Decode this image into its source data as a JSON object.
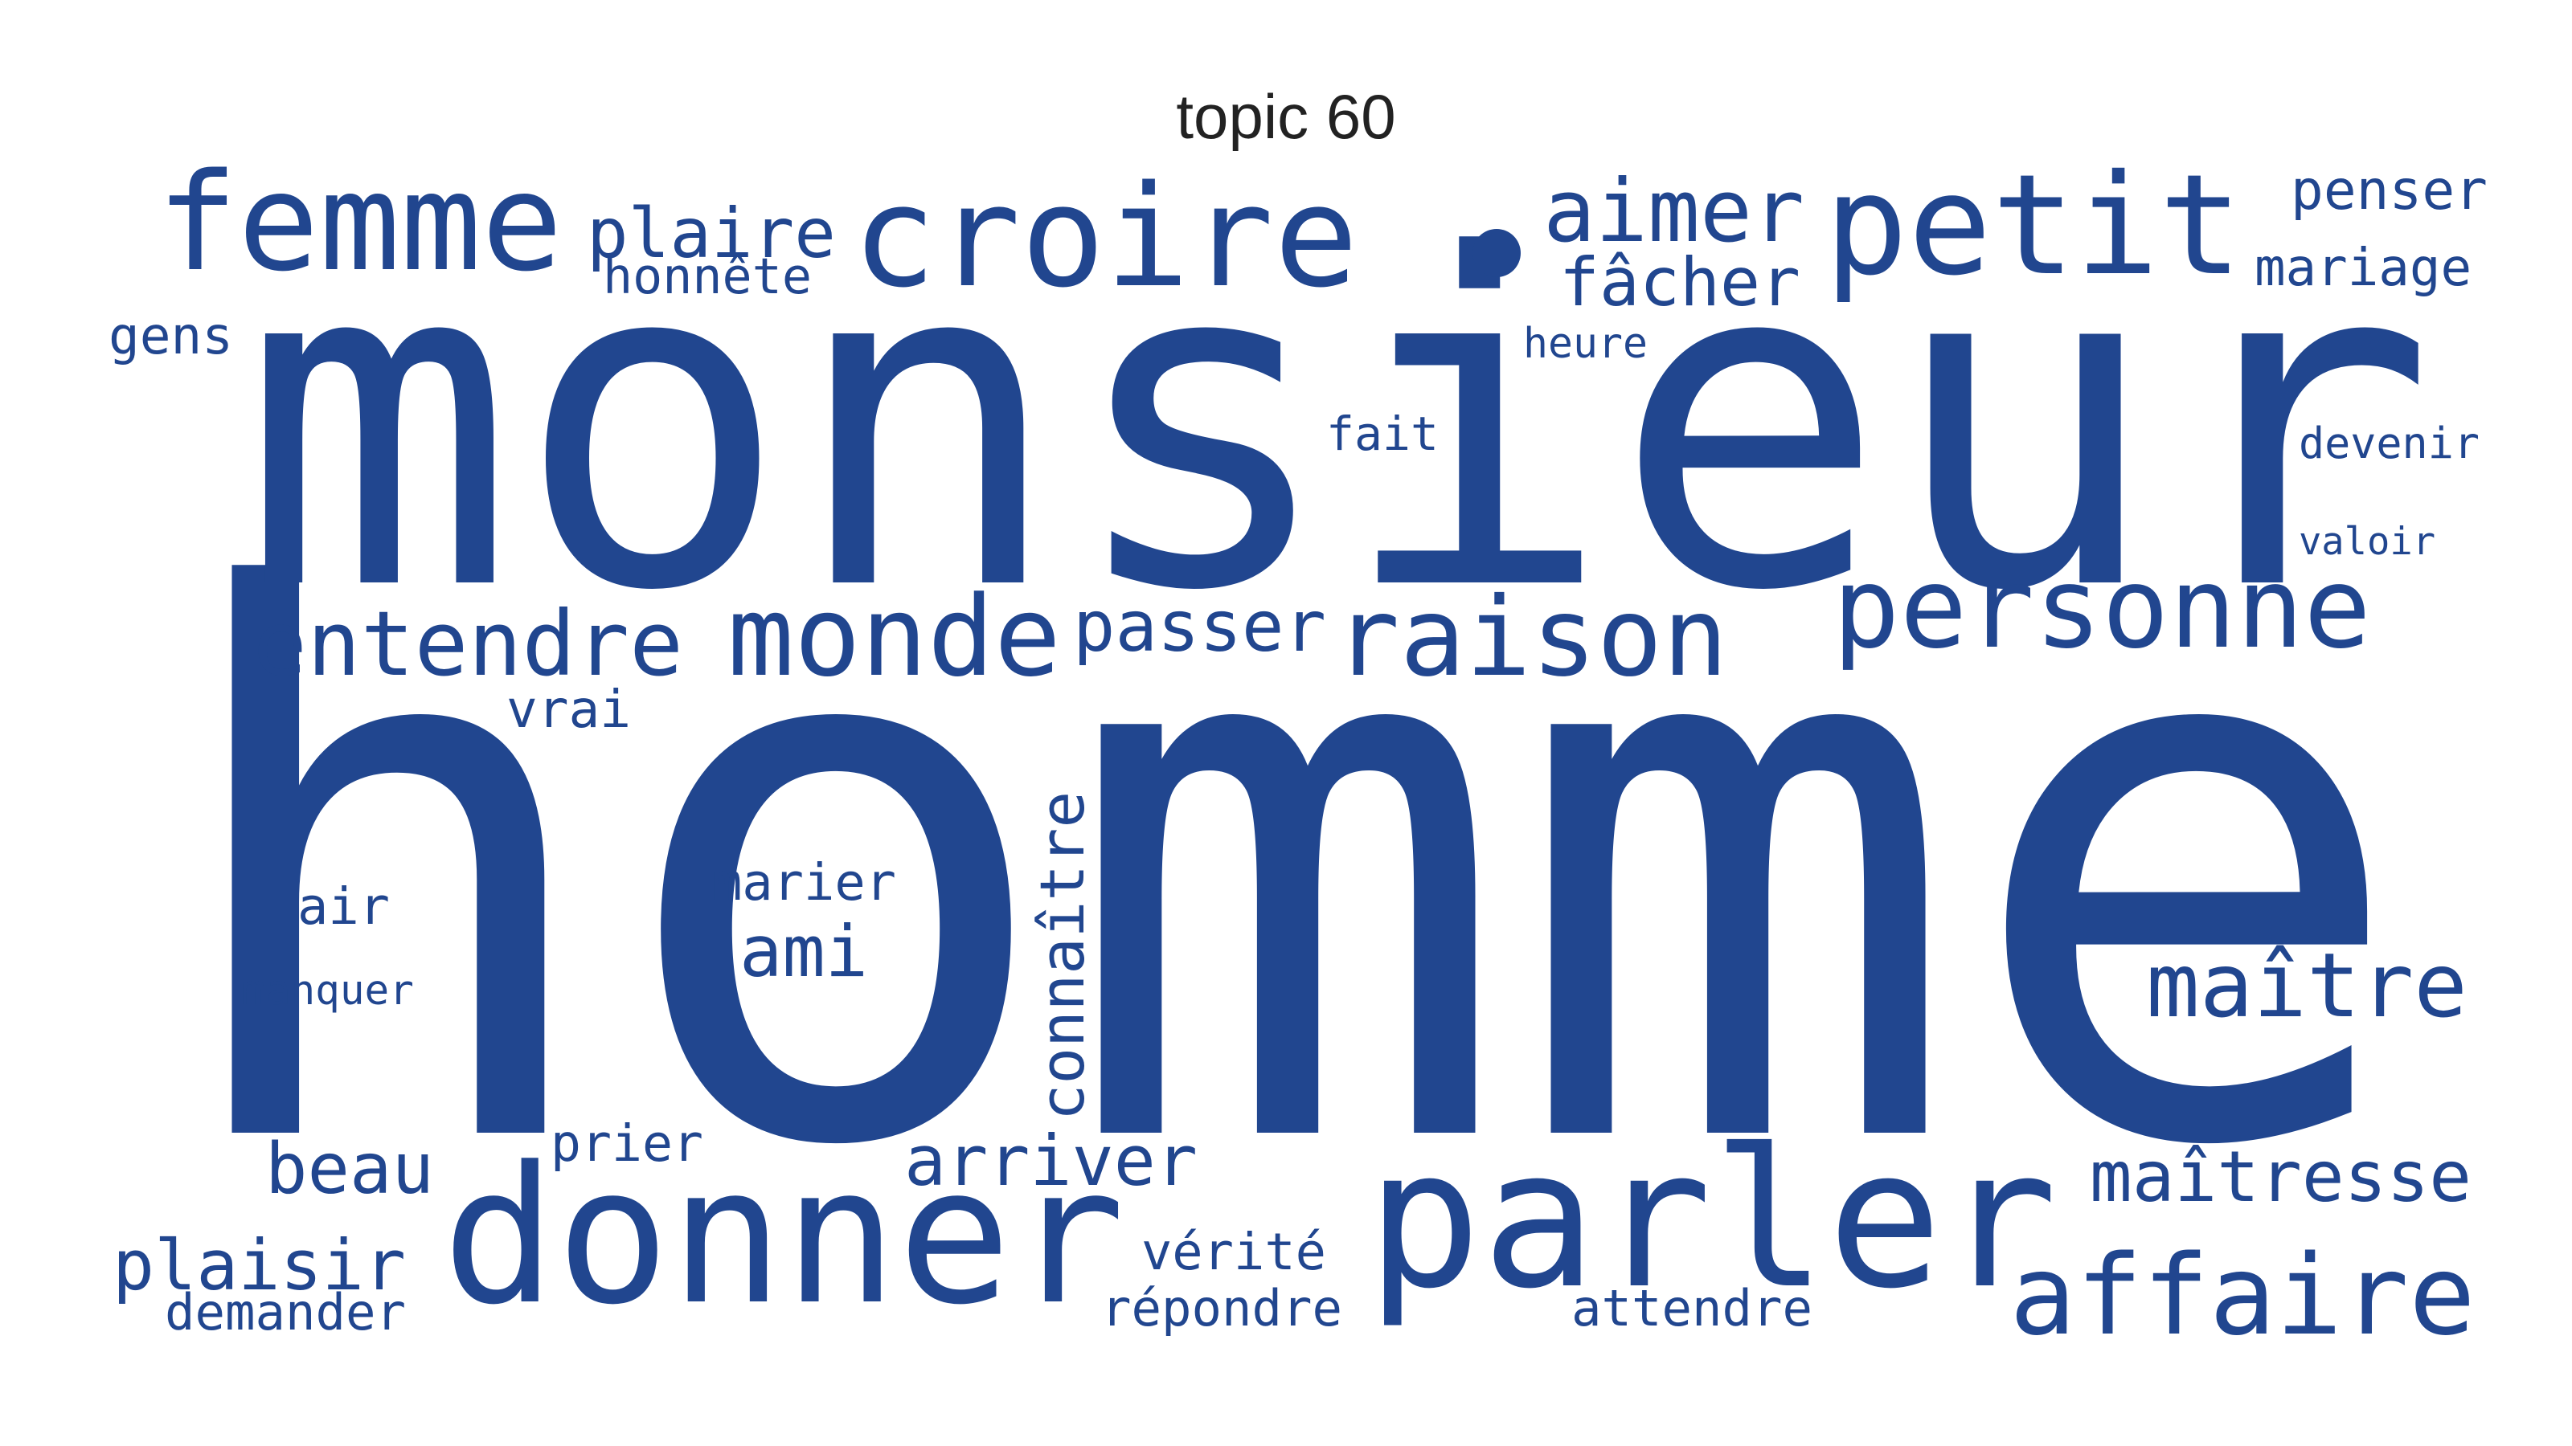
{
  "chart_data": {
    "type": "wordcloud",
    "title": "topic 60",
    "color": "#21468f",
    "words": [
      {
        "text": "homme",
        "weight": 100
      },
      {
        "text": "monsieur",
        "weight": 58
      },
      {
        "text": "parler",
        "weight": 24
      },
      {
        "text": "donner",
        "weight": 22
      },
      {
        "text": "croire",
        "weight": 15
      },
      {
        "text": "petit",
        "weight": 15
      },
      {
        "text": "femme",
        "weight": 15
      },
      {
        "text": "raison",
        "weight": 12
      },
      {
        "text": "personne",
        "weight": 12
      },
      {
        "text": "affaire",
        "weight": 12
      },
      {
        "text": "monde",
        "weight": 11
      },
      {
        "text": "entendre",
        "weight": 10
      },
      {
        "text": "maître",
        "weight": 10
      },
      {
        "text": "aimer",
        "weight": 9
      },
      {
        "text": "fâcher",
        "weight": 8
      },
      {
        "text": "plaire",
        "weight": 8
      },
      {
        "text": "passer",
        "weight": 8
      },
      {
        "text": "plaisir",
        "weight": 8
      },
      {
        "text": "beau",
        "weight": 8
      },
      {
        "text": "arriver",
        "weight": 8
      },
      {
        "text": "maîtresse",
        "weight": 8
      },
      {
        "text": "ami",
        "weight": 8
      },
      {
        "text": "marier",
        "weight": 6
      },
      {
        "text": "connaître",
        "weight": 6
      },
      {
        "text": "vérité",
        "weight": 6
      },
      {
        "text": "répondre",
        "weight": 6
      },
      {
        "text": "penser",
        "weight": 6
      },
      {
        "text": "mariage",
        "weight": 6
      },
      {
        "text": "honnête",
        "weight": 6
      },
      {
        "text": "gens",
        "weight": 6
      },
      {
        "text": "vrai",
        "weight": 6
      },
      {
        "text": "air",
        "weight": 6
      },
      {
        "text": "demander",
        "weight": 6
      },
      {
        "text": "prier",
        "weight": 5
      },
      {
        "text": "attendre",
        "weight": 5
      },
      {
        "text": "fait",
        "weight": 5
      },
      {
        "text": "heure",
        "weight": 5
      },
      {
        "text": "devenir",
        "weight": 5
      },
      {
        "text": "valoir",
        "weight": 5
      },
      {
        "text": "manquer",
        "weight": 5
      }
    ]
  }
}
